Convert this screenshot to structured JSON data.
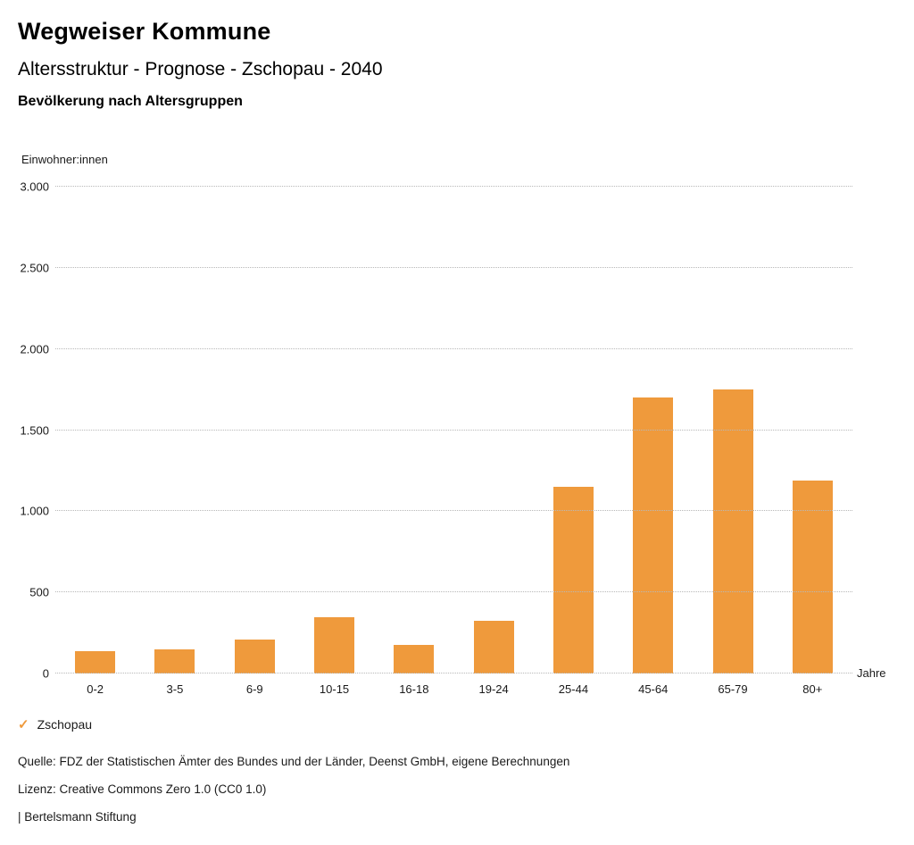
{
  "header": {
    "title": "Wegweiser Kommune",
    "subtitle": "Altersstruktur - Prognose - Zschopau - 2040",
    "section_title": "Bevölkerung nach Altersgruppen"
  },
  "chart": {
    "unit_label": "Einwohner:innen",
    "x_axis_unit": "Jahre"
  },
  "legend": {
    "check_icon": "✓",
    "label": "Zschopau"
  },
  "footer": {
    "source": "Quelle: FDZ der Statistischen Ämter des Bundes und der Länder, Deenst GmbH, eigene Berechnungen",
    "license": "Lizenz: Creative Commons Zero 1.0 (CC0 1.0)",
    "attribution": "| Bertelsmann Stiftung"
  },
  "chart_data": {
    "type": "bar",
    "title": "Bevölkerung nach Altersgruppen",
    "series_name": "Zschopau",
    "categories": [
      "0-2",
      "3-5",
      "6-9",
      "10-15",
      "16-18",
      "19-24",
      "25-44",
      "45-64",
      "65-79",
      "80+"
    ],
    "values": [
      135,
      150,
      210,
      345,
      175,
      325,
      1150,
      1700,
      1750,
      1190
    ],
    "xlabel": "Jahre",
    "ylabel": "Einwohner:innen",
    "ylim": [
      0,
      3000
    ],
    "y_ticks": [
      {
        "value": 0,
        "label": "0"
      },
      {
        "value": 500,
        "label": "500"
      },
      {
        "value": 1000,
        "label": "1.000"
      },
      {
        "value": 1500,
        "label": "1.500"
      },
      {
        "value": 2000,
        "label": "2.000"
      },
      {
        "value": 2500,
        "label": "2.500"
      },
      {
        "value": 3000,
        "label": "3.000"
      }
    ],
    "bar_color": "#EF9A3C",
    "grid": true,
    "legend_position": "bottom-left"
  }
}
